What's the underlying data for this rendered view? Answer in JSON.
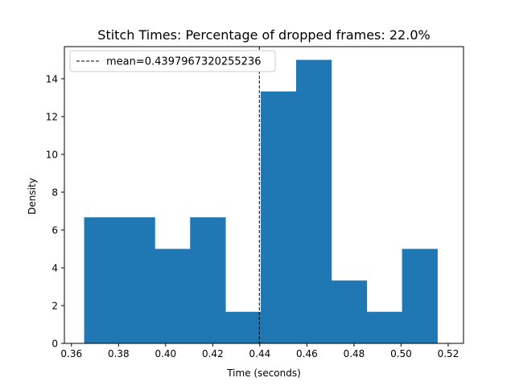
{
  "chart_data": {
    "type": "histogram",
    "title": "Stitch Times: Percentage of dropped frames: 22.0%",
    "xlabel": "Time (seconds)",
    "ylabel": "Density",
    "xlim": [
      0.357,
      0.5265
    ],
    "ylim": [
      0,
      15.7
    ],
    "xticks": [
      0.36,
      0.38,
      0.4,
      0.42,
      0.44,
      0.46,
      0.48,
      0.5,
      0.52
    ],
    "xtick_labels": [
      "0.36",
      "0.38",
      "0.40",
      "0.42",
      "0.44",
      "0.46",
      "0.48",
      "0.50",
      "0.52"
    ],
    "yticks": [
      0,
      2,
      4,
      6,
      8,
      10,
      12,
      14
    ],
    "ytick_labels": [
      "0",
      "2",
      "4",
      "6",
      "8",
      "10",
      "12",
      "14"
    ],
    "bins": [
      {
        "x0": 0.3654,
        "x1": 0.3804,
        "value": 6.67
      },
      {
        "x0": 0.3804,
        "x1": 0.3954,
        "value": 6.67
      },
      {
        "x0": 0.3954,
        "x1": 0.4104,
        "value": 5.0
      },
      {
        "x0": 0.4104,
        "x1": 0.4254,
        "value": 6.67
      },
      {
        "x0": 0.4254,
        "x1": 0.4404,
        "value": 1.67
      },
      {
        "x0": 0.4404,
        "x1": 0.4554,
        "value": 13.33
      },
      {
        "x0": 0.4554,
        "x1": 0.4704,
        "value": 15.0
      },
      {
        "x0": 0.4704,
        "x1": 0.4854,
        "value": 3.33
      },
      {
        "x0": 0.4854,
        "x1": 0.5004,
        "value": 1.67
      },
      {
        "x0": 0.5004,
        "x1": 0.5154,
        "value": 5.0
      }
    ],
    "bar_color": "#1f77b4",
    "mean_line": {
      "x": 0.4397967320255236,
      "style": "dashed",
      "color": "#000000"
    },
    "legend": {
      "position": "upper-left",
      "entries": [
        {
          "label": "mean=0.4397967320255236",
          "style": "dashed-line",
          "color": "#000000"
        }
      ]
    },
    "grid": false
  }
}
